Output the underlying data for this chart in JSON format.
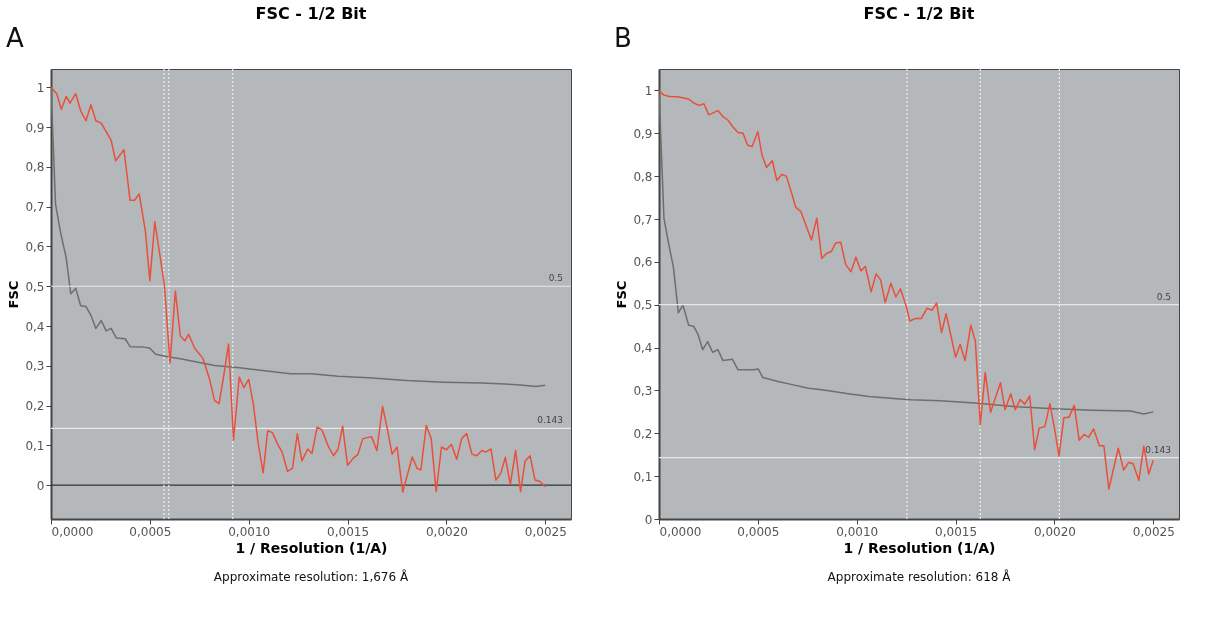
{
  "chart_data": [
    {
      "type": "line",
      "title": "FSC - 1/2 Bit",
      "xlabel": "1 / Resolution (1/A)",
      "ylabel": "FSC",
      "annotations": [
        "A",
        "Approximate resolution: 1,676 Å"
      ],
      "xlim": [
        0,
        0.00263
      ],
      "ylim": [
        -0.085,
        1.046
      ],
      "xticks": [
        {
          "value": 0,
          "label": "0,0000"
        },
        {
          "value": 0.0005,
          "label": "0,0005"
        },
        {
          "value": 0.001,
          "label": "0,0010"
        },
        {
          "value": 0.0015,
          "label": "0,0015"
        },
        {
          "value": 0.002,
          "label": "0,0020"
        },
        {
          "value": 0.0025,
          "label": "0,0025"
        }
      ],
      "yticks": [
        0,
        {
          "value": 0.1,
          "label": "0,1"
        },
        {
          "value": 0.2,
          "label": "0,2"
        },
        {
          "value": 0.3,
          "label": "0,3"
        },
        {
          "value": 0.4,
          "label": "0,4"
        },
        {
          "value": 0.5,
          "label": "0,5"
        },
        {
          "value": 0.6,
          "label": "0,6"
        },
        {
          "value": 0.7,
          "label": "0,7"
        },
        {
          "value": 0.8,
          "label": "0,8"
        },
        {
          "value": 0.9,
          "label": "0,9"
        },
        1
      ],
      "grid": false,
      "ref_lines": [
        {
          "axis": "y",
          "value": 0.5,
          "label": "0.5",
          "color": "#e6e8ea",
          "line_style": "solid"
        },
        {
          "axis": "y",
          "value": 0.143,
          "label": "0.143",
          "color": "#e6e8ea",
          "line_style": "solid"
        },
        {
          "axis": "y",
          "value": 0,
          "label": null,
          "color": "#303030",
          "line_style": "solid"
        },
        {
          "axis": "x",
          "value": 0.000571,
          "label": null,
          "color": "#eeeeee",
          "line_style": "dotted"
        },
        {
          "axis": "x",
          "value": 0.000596,
          "label": null,
          "color": "#eeeeee",
          "line_style": "dotted"
        },
        {
          "axis": "x",
          "value": 0.000919,
          "label": null,
          "color": "#eeeeee",
          "line_style": "dotted"
        }
      ],
      "series": [
        {
          "color": "#6e6e6e",
          "x": [
            0,
            2.3e-05,
            4.8e-05,
            7.7e-05,
            0.0001,
            0.000125,
            0.00015,
            0.000177,
            0.000202,
            0.000227,
            0.000254,
            0.000279,
            0.000304,
            0.00033,
            0.000375,
            0.0004,
            0.000471,
            0.0005,
            0.000529,
            0.000596,
            0.000654,
            0.000712,
            0.000827,
            0.000942,
            0.001058,
            0.001212,
            0.001317,
            0.001452,
            0.001606,
            0.001798,
            0.00199,
            0.002183,
            0.002375,
            0.002452,
            0.0025
          ],
          "values": [
            1.0,
            0.706,
            0.636,
            0.571,
            0.481,
            0.495,
            0.451,
            0.449,
            0.427,
            0.394,
            0.414,
            0.388,
            0.394,
            0.37,
            0.368,
            0.348,
            0.347,
            0.344,
            0.329,
            0.322,
            0.318,
            0.312,
            0.301,
            0.296,
            0.289,
            0.28,
            0.28,
            0.274,
            0.27,
            0.263,
            0.259,
            0.257,
            0.252,
            0.248,
            0.251
          ]
        },
        {
          "color": "#e8503c",
          "x": [
            0,
            2.9e-05,
            5.2e-05,
            7.7e-05,
            9.6e-05,
            0.000125,
            0.00015,
            0.000177,
            0.000202,
            0.000227,
            0.000254,
            0.000304,
            0.000327,
            0.000369,
            0.0004,
            0.000423,
            0.000446,
            0.000477,
            0.0005,
            0.000525,
            0.000573,
            0.000602,
            0.000629,
            0.000654,
            0.000677,
            0.000696,
            0.000727,
            0.000769,
            0.000802,
            0.000827,
            0.00085,
            0.000875,
            0.000898,
            0.000923,
            0.000952,
            0.000975,
            0.001,
            0.001023,
            0.001048,
            0.001073,
            0.001096,
            0.00112,
            0.001144,
            0.001169,
            0.001196,
            0.001221,
            0.001246,
            0.001269,
            0.001298,
            0.00132,
            0.001346,
            0.00137,
            0.001404,
            0.001429,
            0.001452,
            0.001475,
            0.0015,
            0.001529,
            0.001552,
            0.001577,
            0.001621,
            0.001648,
            0.001677,
            0.001702,
            0.001725,
            0.00175,
            0.001779,
            0.001827,
            0.001852,
            0.001871,
            0.001898,
            0.001923,
            0.001948,
            0.001975,
            0.002,
            0.002025,
            0.002052,
            0.002077,
            0.002102,
            0.002129,
            0.002154,
            0.002179,
            0.002198,
            0.002225,
            0.00225,
            0.002275,
            0.002298,
            0.002323,
            0.00235,
            0.002375,
            0.002398,
            0.002423,
            0.002448,
            0.002471,
            0.0025
          ],
          "values": [
            1.0,
            0.984,
            0.945,
            0.977,
            0.96,
            0.984,
            0.941,
            0.916,
            0.956,
            0.916,
            0.91,
            0.867,
            0.815,
            0.843,
            0.716,
            0.716,
            0.732,
            0.64,
            0.514,
            0.662,
            0.505,
            0.307,
            0.488,
            0.375,
            0.363,
            0.379,
            0.344,
            0.318,
            0.266,
            0.213,
            0.205,
            0.279,
            0.355,
            0.113,
            0.272,
            0.245,
            0.266,
            0.205,
            0.105,
            0.031,
            0.137,
            0.132,
            0.105,
            0.083,
            0.035,
            0.042,
            0.129,
            0.061,
            0.091,
            0.08,
            0.146,
            0.139,
            0.096,
            0.074,
            0.091,
            0.148,
            0.05,
            0.068,
            0.077,
            0.117,
            0.122,
            0.087,
            0.198,
            0.139,
            0.078,
            0.096,
            -0.017,
            0.071,
            0.042,
            0.039,
            0.15,
            0.117,
            -0.016,
            0.096,
            0.089,
            0.103,
            0.065,
            0.117,
            0.13,
            0.078,
            0.074,
            0.087,
            0.083,
            0.091,
            0.013,
            0.03,
            0.07,
            0.002,
            0.087,
            -0.016,
            0.061,
            0.074,
            0.013,
            0.01,
            -0.004
          ]
        }
      ]
    },
    {
      "type": "line",
      "title": "FSC - 1/2 Bit",
      "xlabel": "1 / Resolution (1/A)",
      "ylabel": "FSC",
      "annotations": [
        "B",
        "Approximate resolution: 618 Å"
      ],
      "xlim": [
        0,
        0.00263
      ],
      "ylim": [
        0,
        1.05
      ],
      "xticks": [
        {
          "value": 0,
          "label": "0,0000"
        },
        {
          "value": 0.0005,
          "label": "0,0005"
        },
        {
          "value": 0.001,
          "label": "0,0010"
        },
        {
          "value": 0.0015,
          "label": "0,0015"
        },
        {
          "value": 0.002,
          "label": "0,0020"
        },
        {
          "value": 0.0025,
          "label": "0,0025"
        }
      ],
      "yticks": [
        0,
        {
          "value": 0.1,
          "label": "0,1"
        },
        {
          "value": 0.2,
          "label": "0,2"
        },
        {
          "value": 0.3,
          "label": "0,3"
        },
        {
          "value": 0.4,
          "label": "0,4"
        },
        {
          "value": 0.5,
          "label": "0,5"
        },
        {
          "value": 0.6,
          "label": "0,6"
        },
        {
          "value": 0.7,
          "label": "0,7"
        },
        {
          "value": 0.8,
          "label": "0,8"
        },
        {
          "value": 0.9,
          "label": "0,9"
        },
        1
      ],
      "grid": false,
      "ref_lines": [
        {
          "axis": "y",
          "value": 0.5,
          "label": "0.5",
          "color": "#e6e8ea",
          "line_style": "solid"
        },
        {
          "axis": "y",
          "value": 0.143,
          "label": "0.143",
          "color": "#e6e8ea",
          "line_style": "solid"
        },
        {
          "axis": "x",
          "value": 0.001254,
          "label": null,
          "color": "#eeeeee",
          "line_style": "dotted"
        },
        {
          "axis": "x",
          "value": 0.001625,
          "label": null,
          "color": "#eeeeee",
          "line_style": "dotted"
        },
        {
          "axis": "x",
          "value": 0.002025,
          "label": null,
          "color": "#eeeeee",
          "line_style": "dotted"
        }
      ],
      "series": [
        {
          "color": "#6e6e6e",
          "x": [
            0,
            2.5e-05,
            4.8e-05,
            7.3e-05,
            9.8e-05,
            0.000121,
            0.00015,
            0.000175,
            0.000198,
            0.000221,
            0.000246,
            0.000271,
            0.000298,
            0.000323,
            0.000371,
            0.0004,
            0.000477,
            0.000502,
            0.000525,
            0.000602,
            0.000679,
            0.000756,
            0.000833,
            0.000948,
            0.001063,
            0.001217,
            0.001275,
            0.001423,
            0.001615,
            0.001808,
            0.002,
            0.002192,
            0.002385,
            0.002452,
            0.0025
          ],
          "values": [
            1.0,
            0.702,
            0.644,
            0.587,
            0.481,
            0.499,
            0.452,
            0.45,
            0.43,
            0.395,
            0.414,
            0.389,
            0.395,
            0.37,
            0.373,
            0.348,
            0.348,
            0.35,
            0.33,
            0.321,
            0.313,
            0.305,
            0.301,
            0.293,
            0.286,
            0.28,
            0.278,
            0.276,
            0.27,
            0.262,
            0.257,
            0.254,
            0.252,
            0.245,
            0.25
          ]
        },
        {
          "color": "#e8503c",
          "x": [
            0,
            2.5e-05,
            5.4e-05,
            9.2e-05,
            0.00015,
            0.000179,
            0.000202,
            0.000227,
            0.000252,
            0.000298,
            0.000323,
            0.000348,
            0.000375,
            0.0004,
            0.000425,
            0.000448,
            0.000471,
            0.0005,
            0.000521,
            0.000544,
            0.000573,
            0.000596,
            0.000621,
            0.000644,
            0.000669,
            0.000692,
            0.000717,
            0.000746,
            0.000771,
            0.000798,
            0.000823,
            0.000848,
            0.000871,
            0.000894,
            0.000919,
            0.000944,
            0.000971,
            0.000996,
            0.001021,
            0.001044,
            0.001073,
            0.001098,
            0.001121,
            0.001144,
            0.001173,
            0.001198,
            0.001221,
            0.00125,
            0.001269,
            0.001298,
            0.001327,
            0.001356,
            0.00138,
            0.001404,
            0.001429,
            0.001452,
            0.0015,
            0.001523,
            0.001548,
            0.001577,
            0.0016,
            0.001625,
            0.00165,
            0.001677,
            0.001727,
            0.00175,
            0.001779,
            0.001802,
            0.001827,
            0.00185,
            0.001875,
            0.0019,
            0.001923,
            0.001952,
            0.001977,
            0.002,
            0.002023,
            0.002048,
            0.002073,
            0.0021,
            0.002125,
            0.00215,
            0.002173,
            0.002198,
            0.002227,
            0.00225,
            0.002275,
            0.002323,
            0.00235,
            0.002375,
            0.002398,
            0.002427,
            0.002452,
            0.002477,
            0.0025
          ],
          "values": [
            1.0,
            0.989,
            0.986,
            0.985,
            0.98,
            0.97,
            0.965,
            0.969,
            0.943,
            0.953,
            0.939,
            0.931,
            0.914,
            0.902,
            0.9,
            0.872,
            0.869,
            0.904,
            0.849,
            0.82,
            0.836,
            0.79,
            0.804,
            0.8,
            0.763,
            0.727,
            0.718,
            0.682,
            0.651,
            0.702,
            0.608,
            0.62,
            0.624,
            0.644,
            0.646,
            0.594,
            0.577,
            0.611,
            0.579,
            0.589,
            0.53,
            0.572,
            0.558,
            0.505,
            0.55,
            0.518,
            0.537,
            0.497,
            0.462,
            0.468,
            0.468,
            0.492,
            0.487,
            0.504,
            0.435,
            0.479,
            0.378,
            0.407,
            0.37,
            0.452,
            0.415,
            0.22,
            0.342,
            0.249,
            0.318,
            0.255,
            0.292,
            0.255,
            0.279,
            0.268,
            0.287,
            0.162,
            0.212,
            0.216,
            0.269,
            0.212,
            0.147,
            0.237,
            0.237,
            0.265,
            0.184,
            0.197,
            0.191,
            0.21,
            0.171,
            0.171,
            0.07,
            0.165,
            0.114,
            0.132,
            0.129,
            0.09,
            0.17,
            0.105,
            0.137
          ]
        }
      ]
    }
  ]
}
